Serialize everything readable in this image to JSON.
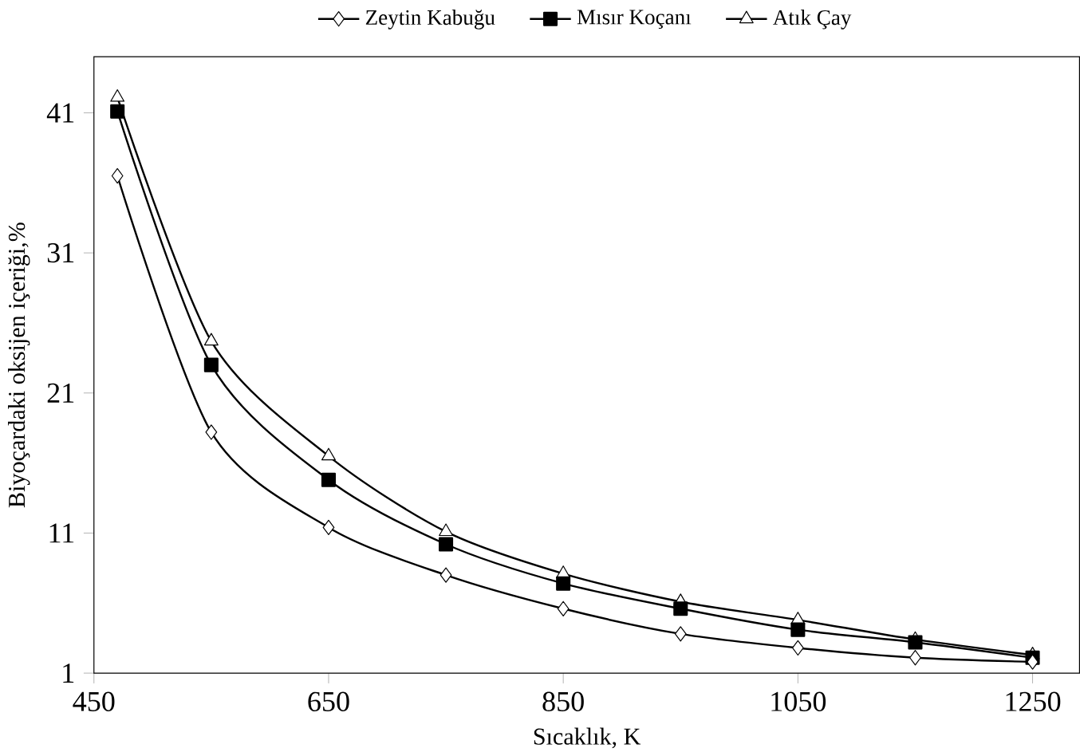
{
  "chart_data": {
    "type": "line",
    "xlabel": "Sıcaklık, K",
    "ylabel": "Biyoçardaki oksijen içeriği,%",
    "x": [
      470,
      550,
      650,
      750,
      850,
      950,
      1050,
      1150,
      1250
    ],
    "series": [
      {
        "name": "Zeytin Kabuğu",
        "color": "#000000",
        "marker": "diamond",
        "values": [
          36.5,
          18.2,
          11.4,
          8.0,
          5.6,
          3.8,
          2.8,
          2.1,
          1.8
        ]
      },
      {
        "name": "Mısır Koçanı",
        "color": "#000000",
        "marker": "square",
        "values": [
          41.1,
          23.0,
          14.8,
          10.2,
          7.4,
          5.6,
          4.1,
          3.2,
          2.1
        ]
      },
      {
        "name": "Atık Çay",
        "color": "#000000",
        "marker": "triangle",
        "values": [
          42.1,
          24.7,
          16.5,
          11.1,
          8.1,
          6.1,
          4.8,
          3.4,
          2.3
        ]
      }
    ],
    "xlim": [
      450,
      1290
    ],
    "ylim": [
      1,
      45
    ],
    "xticks": [
      450,
      650,
      850,
      1050,
      1250
    ],
    "yticks": [
      1,
      11,
      21,
      31,
      41
    ],
    "grid": false,
    "legend": "top",
    "line_style": "solid"
  }
}
